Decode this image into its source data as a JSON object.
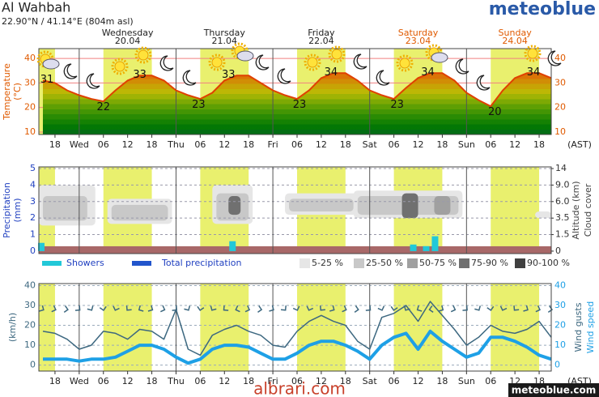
{
  "header": {
    "title": "Al Wahbah",
    "location": "22.90°N / 41.14°E (804m asl)",
    "brand": "meteoblue"
  },
  "days": [
    {
      "name": "Wednesday",
      "date": "20.04",
      "color": "#222222"
    },
    {
      "name": "Thursday",
      "date": "21.04",
      "color": "#222222"
    },
    {
      "name": "Friday",
      "date": "22.04",
      "color": "#222222"
    },
    {
      "name": "Saturday",
      "date": "23.04",
      "color": "#e05a00"
    },
    {
      "name": "Sunday",
      "date": "24.04",
      "color": "#e05a00"
    }
  ],
  "time_axis": {
    "xlim": [
      14,
      141
    ],
    "unit_label": "(AST)",
    "xticks": [
      18,
      {
        "value": 24,
        "label": "Wed"
      },
      {
        "value": 30,
        "label": "06"
      },
      {
        "value": 36,
        "label": "12"
      },
      {
        "value": 42,
        "label": "18"
      },
      {
        "value": 48,
        "label": "Thu"
      },
      {
        "value": 54,
        "label": "06"
      },
      {
        "value": 60,
        "label": "12"
      },
      {
        "value": 66,
        "label": "18"
      },
      {
        "value": 72,
        "label": "Fri"
      },
      {
        "value": 78,
        "label": "06"
      },
      {
        "value": 84,
        "label": "12"
      },
      {
        "value": 90,
        "label": "18"
      },
      {
        "value": 96,
        "label": "Sat"
      },
      {
        "value": 102,
        "label": "06"
      },
      {
        "value": 108,
        "label": "12"
      },
      {
        "value": 114,
        "label": "18"
      },
      {
        "value": 120,
        "label": "Sun"
      },
      {
        "value": 126,
        "label": "06"
      },
      {
        "value": 132,
        "label": "12"
      },
      {
        "value": 138,
        "label": "18"
      }
    ]
  },
  "chart_data": [
    {
      "type": "line",
      "ylabel": "Temperature",
      "yunit": "(°C)",
      "ylim": [
        9,
        44
      ],
      "yticks": [
        10,
        20,
        30,
        40
      ],
      "grid": true,
      "color": "#e04000",
      "x": [
        15,
        18,
        21,
        24,
        27,
        30,
        33,
        36,
        39,
        42,
        45,
        48,
        51,
        54,
        57,
        60,
        63,
        66,
        69,
        72,
        75,
        78,
        81,
        84,
        87,
        90,
        93,
        96,
        99,
        102,
        105,
        108,
        111,
        114,
        117,
        120,
        123,
        126,
        129,
        132,
        135,
        138,
        141
      ],
      "values": [
        31,
        30,
        27,
        25,
        23.5,
        22.5,
        27,
        31,
        33,
        33,
        31,
        27,
        25,
        23.5,
        26,
        31,
        33,
        33,
        30,
        27,
        25,
        23.5,
        27,
        32,
        34,
        34,
        31,
        27,
        25,
        23.5,
        28,
        32,
        34,
        34,
        31,
        26,
        23,
        20.5,
        27,
        32,
        34,
        34,
        32
      ],
      "extremes": {
        "x": [
          16,
          30,
          39,
          53.6,
          61,
          78.6,
          86.4,
          102.8,
          110.4,
          127,
          136.6
        ],
        "values": [
          31,
          22,
          33,
          23,
          33,
          23,
          34,
          23,
          34,
          20,
          34
        ]
      }
    },
    {
      "type": "bar",
      "ylabel": "Precipitation",
      "yunit": "(mm)",
      "y2label": "Altitude (km)",
      "y2label2": "Cloud cover",
      "ylim": [
        -0.15,
        5.1
      ],
      "yticks": [
        0,
        1,
        2,
        3,
        4,
        5
      ],
      "y2ticks": [
        0,
        1.5,
        3.5,
        {
          "value": 6,
          "label": "6.0"
        },
        {
          "value": 9,
          "label": "9.0"
        },
        14
      ],
      "grid": true,
      "series": [
        {
          "name": "Showers",
          "color": "#22c8d8",
          "x": [
            14.6,
            62,
            106.8,
            110,
            112.2
          ],
          "values": [
            0.5,
            0.6,
            0.4,
            0.3,
            0.9
          ]
        },
        {
          "name": "Total precipitation",
          "color": "#2255cc",
          "x": [],
          "values": []
        }
      ],
      "cloud_legend": [
        {
          "label": "5-25 %",
          "color": "#e6e6e6"
        },
        {
          "label": "25-50 %",
          "color": "#c8c8c8"
        },
        {
          "label": "50-75 %",
          "color": "#a0a0a0"
        },
        {
          "label": "75-90 %",
          "color": "#707070"
        },
        {
          "label": "90-100 %",
          "color": "#404040"
        }
      ],
      "clouds": [
        {
          "start": 14,
          "end": 28,
          "low": 2.6,
          "high": 9,
          "level": 0
        },
        {
          "start": 15,
          "end": 26,
          "low": 3.2,
          "high": 7,
          "level": 1
        },
        {
          "start": 31,
          "end": 47,
          "low": 2.8,
          "high": 6.5,
          "level": 0
        },
        {
          "start": 32,
          "end": 46,
          "low": 3.2,
          "high": 5.5,
          "level": 1
        },
        {
          "start": 57,
          "end": 67,
          "low": 2.8,
          "high": 9,
          "level": 0
        },
        {
          "start": 58,
          "end": 66,
          "low": 3.2,
          "high": 7.5,
          "level": 1
        },
        {
          "start": 61,
          "end": 64,
          "low": 4,
          "high": 7,
          "level": 3
        },
        {
          "start": 75,
          "end": 93,
          "low": 4,
          "high": 7.5,
          "level": 0
        },
        {
          "start": 76,
          "end": 92,
          "low": 4.5,
          "high": 6.5,
          "level": 1
        },
        {
          "start": 92,
          "end": 119,
          "low": 3.5,
          "high": 8,
          "level": 0
        },
        {
          "start": 93,
          "end": 118,
          "low": 4,
          "high": 7,
          "level": 1
        },
        {
          "start": 104,
          "end": 108,
          "low": 3.5,
          "high": 7.5,
          "level": 3
        },
        {
          "start": 112,
          "end": 116,
          "low": 4,
          "high": 7,
          "level": 2
        },
        {
          "start": 137,
          "end": 141,
          "low": 3.5,
          "high": 4.5,
          "level": 0
        }
      ]
    },
    {
      "type": "line",
      "ylabel": "(km/h)",
      "ylim": [
        -3,
        41
      ],
      "yticks": [
        0,
        10,
        20,
        30,
        40
      ],
      "y2lim": [
        -3,
        41
      ],
      "y2ticks": [
        0,
        10,
        20,
        30,
        40
      ],
      "grid": true,
      "x": [
        15,
        18,
        21,
        24,
        27,
        30,
        33,
        36,
        39,
        42,
        45,
        48,
        51,
        54,
        57,
        60,
        63,
        66,
        69,
        72,
        75,
        78,
        81,
        84,
        87,
        90,
        93,
        96,
        99,
        102,
        105,
        108,
        111,
        114,
        117,
        120,
        123,
        126,
        129,
        132,
        135,
        138,
        141
      ],
      "series": [
        {
          "name": "Wind gusts",
          "color": "#3d6880",
          "values": [
            17,
            16,
            13,
            8,
            10,
            17,
            16,
            13,
            18,
            17,
            13,
            28,
            8,
            5,
            15,
            18,
            20,
            17,
            15,
            10,
            9,
            17,
            22,
            25,
            22,
            20,
            12,
            8,
            24,
            26,
            30,
            22,
            32,
            25,
            18,
            10,
            14,
            20,
            17,
            16,
            18,
            22,
            14
          ]
        },
        {
          "name": "Wind speed",
          "color": "#1ea0e6",
          "axis": "y2",
          "values": [
            3,
            3,
            3,
            2,
            3,
            3,
            4,
            7,
            10,
            10,
            8,
            4,
            1,
            3,
            8,
            10,
            10,
            9,
            6,
            3,
            3,
            6,
            10,
            12,
            12,
            10,
            7,
            3,
            10,
            14,
            16,
            8,
            17,
            12,
            8,
            4,
            6,
            14,
            14,
            12,
            9,
            5,
            3
          ]
        }
      ],
      "directions": [
        300,
        290,
        280,
        310,
        330,
        350,
        20,
        40,
        60,
        300,
        290,
        310,
        330,
        10,
        30,
        50,
        70,
        290,
        280,
        300,
        320,
        340,
        20,
        40,
        300,
        290,
        280,
        310,
        340,
        10,
        30,
        60,
        80,
        300,
        290,
        310,
        330,
        350,
        20,
        40,
        300,
        290,
        280
      ]
    }
  ],
  "footer": {
    "site": "albrari.com",
    "credit": "meteoblue.com"
  }
}
